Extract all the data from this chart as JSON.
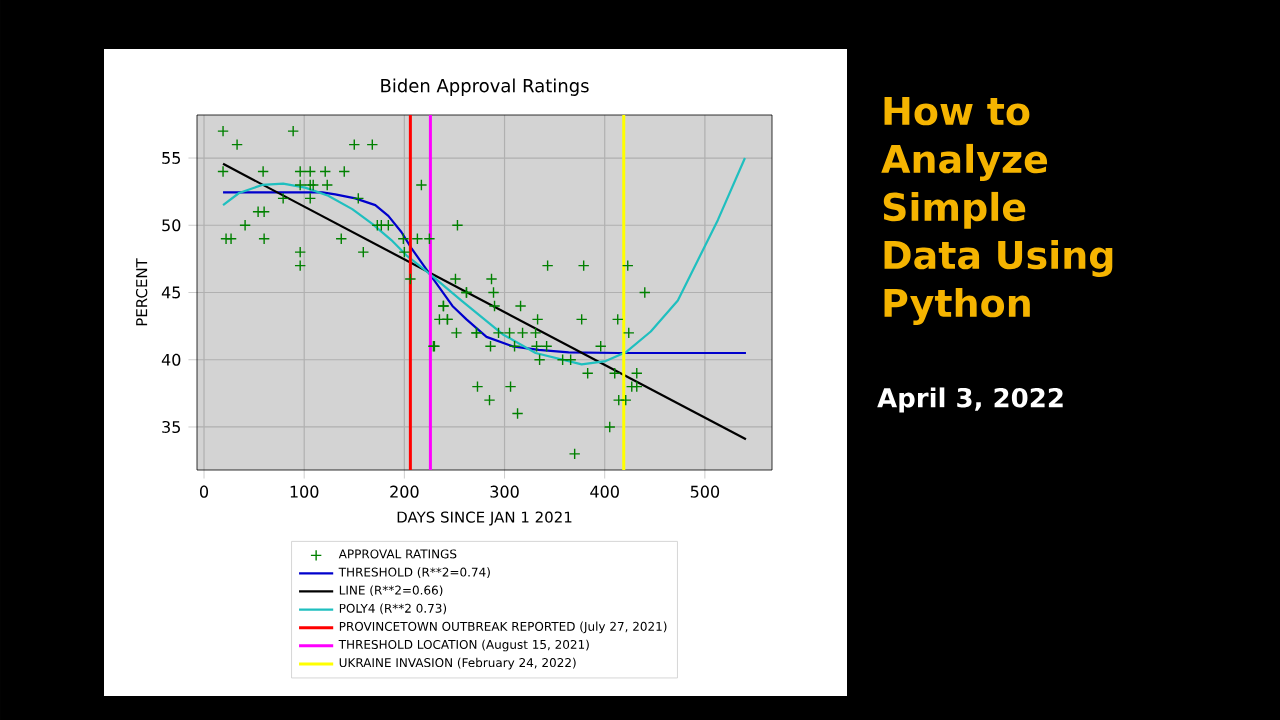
{
  "chart_data": {
    "type": "scatter",
    "title": "Biden Approval Ratings",
    "xlabel": "DAYS SINCE JAN 1 2021",
    "ylabel": "PERCENT",
    "annotations": [
      "How to Analyze Simple Data Using Python",
      "April 3, 2022"
    ],
    "xlim": [
      -7,
      567
    ],
    "ylim": [
      31.8,
      58.2
    ],
    "xticks": [
      0,
      100,
      200,
      300,
      400,
      500
    ],
    "yticks": [
      35,
      40,
      45,
      50,
      55
    ],
    "grid": true,
    "legend": "bottom",
    "series": [
      {
        "name": "APPROVAL RATINGS",
        "marker": "cross",
        "color": "#008000",
        "x": [
          19,
          19,
          22,
          27,
          33,
          41,
          54,
          59,
          60,
          60,
          79,
          89,
          96,
          96,
          96,
          96,
          106,
          106,
          106,
          109,
          121,
          123,
          137,
          140,
          150,
          154,
          159,
          168,
          173,
          177,
          184,
          199,
          200,
          206,
          213,
          217,
          225,
          229,
          230,
          235,
          239,
          239,
          243,
          243,
          251,
          252,
          253,
          262,
          262,
          272,
          272,
          273,
          285,
          286,
          287,
          289,
          290,
          294,
          305,
          306,
          310,
          313,
          316,
          318,
          331,
          332,
          333,
          335,
          342,
          343,
          358,
          366,
          370,
          377,
          379,
          383,
          396,
          405,
          410,
          413,
          414,
          421,
          423,
          424,
          427,
          432,
          432,
          440
        ],
        "values": [
          57,
          54,
          49,
          49,
          56,
          50,
          51,
          54,
          51,
          49,
          52,
          57,
          54,
          53,
          48,
          47,
          54,
          53,
          52,
          53,
          54,
          53,
          49,
          54,
          56,
          52,
          48,
          56,
          50,
          50,
          50,
          49,
          48,
          46,
          49,
          53,
          49,
          41,
          41,
          43,
          44,
          44,
          43,
          43,
          46,
          42,
          50,
          45,
          45,
          42,
          42,
          38,
          37,
          41,
          46,
          45,
          44,
          42,
          42,
          38,
          41,
          36,
          44,
          42,
          42,
          41,
          43,
          40,
          41,
          47,
          40,
          40,
          33,
          43,
          47,
          39,
          41,
          35,
          39,
          43,
          37,
          37,
          47,
          42,
          38,
          38,
          39,
          45
        ]
      },
      {
        "name": "THRESHOLD  (R**2=0.74)",
        "type": "line",
        "color": "#0000cc",
        "x": [
          19,
          118,
          131,
          151,
          171,
          184,
          197,
          207,
          225,
          248,
          262,
          282,
          308,
          334,
          364,
          414,
          541
        ],
        "values": [
          52.45,
          52.45,
          52.3,
          52.0,
          51.5,
          50.7,
          49.5,
          48.3,
          46.4,
          44.0,
          43.0,
          41.7,
          41.0,
          40.74,
          40.55,
          40.5,
          40.5
        ]
      },
      {
        "name": "LINE  (R**2=0.66)",
        "type": "line",
        "color": "#000000",
        "x": [
          19,
          541
        ],
        "values": [
          54.57,
          34.08
        ]
      },
      {
        "name": "POLY4 (R**2 0.73)",
        "type": "line",
        "color": "#1fbfbf",
        "x": [
          19,
          35,
          58,
          79,
          101,
          124,
          148,
          168,
          187,
          203,
          225,
          257,
          298,
          331,
          377,
          401,
          421,
          446,
          473,
          513,
          540
        ],
        "values": [
          51.5,
          52.4,
          53.0,
          53.1,
          52.8,
          52.2,
          51.2,
          50.1,
          48.9,
          47.7,
          46.4,
          44.4,
          41.9,
          40.5,
          39.65,
          39.9,
          40.55,
          42.1,
          44.4,
          50.4,
          55.0
        ]
      }
    ],
    "ref_lines": [
      {
        "axis": "x",
        "value": 206,
        "label": "PROVINCETOWN OUTBREAK REPORTED (July 27, 2021)",
        "color": "#ff0000"
      },
      {
        "axis": "x",
        "value": 226,
        "label": "THRESHOLD LOCATION (August 15, 2021)",
        "color": "#ff00ff"
      },
      {
        "axis": "x",
        "value": 419,
        "label": "UKRAINE INVASION (February 24, 2022)",
        "color": "#ffff00"
      }
    ]
  }
}
